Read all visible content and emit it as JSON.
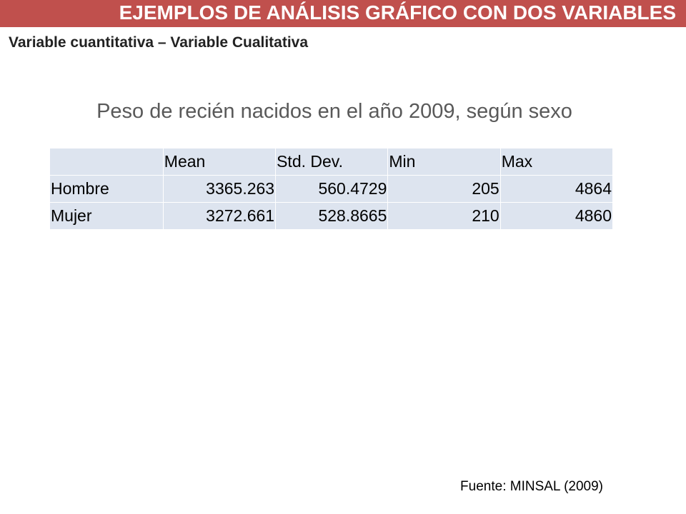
{
  "banner": {
    "title": "EJEMPLOS DE ANÁLISIS GRÁFICO CON DOS VARIABLES",
    "background_color": "#c0504d"
  },
  "subtitle": "Variable cuantitativa – Variable Cualitativa",
  "table": {
    "title": "Peso de recién nacidos en el año 2009, según sexo",
    "headers": [
      "",
      "Mean",
      "Std. Dev.",
      "Min",
      "Max"
    ],
    "rows": [
      {
        "label": "Hombre",
        "values": [
          "3365.263",
          "560.4729",
          "205",
          "4864"
        ]
      },
      {
        "label": "Mujer",
        "values": [
          "3272.661",
          "528.8665",
          "210",
          "4860"
        ]
      }
    ],
    "cell_color": "#dde4ef"
  },
  "source": "Fuente: MINSAL (2009)"
}
